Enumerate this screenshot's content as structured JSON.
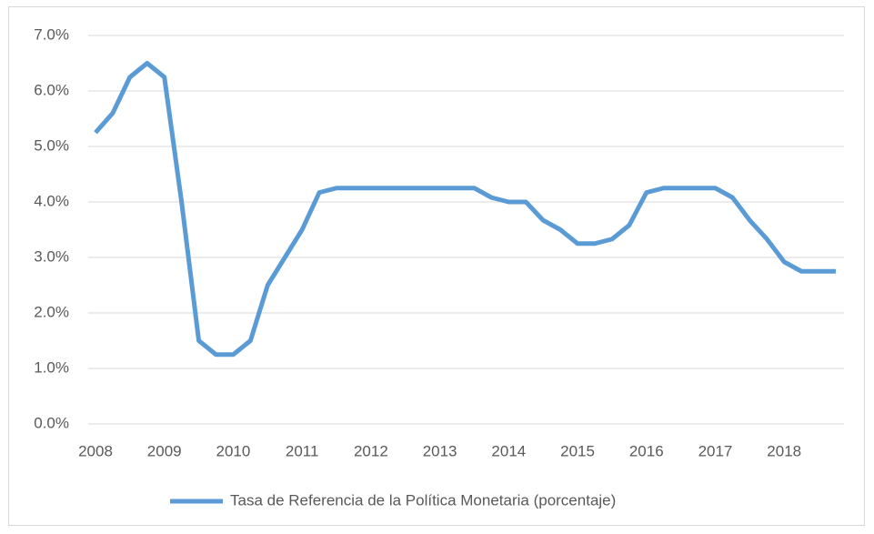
{
  "chart_data": {
    "type": "line",
    "categories": [
      "2008",
      null,
      null,
      null,
      "2009",
      null,
      null,
      null,
      "2010",
      null,
      null,
      null,
      "2011",
      null,
      null,
      null,
      "2012",
      null,
      null,
      null,
      "2013",
      null,
      null,
      null,
      "2014",
      null,
      null,
      null,
      "2015",
      null,
      null,
      null,
      "2016",
      null,
      null,
      null,
      "2017",
      null,
      null,
      null,
      "2018",
      null,
      null,
      null
    ],
    "series": [
      {
        "name": "Tasa de Referencia de la Política Monetaria (porcentaje)",
        "color": "#5b9bd5",
        "values": [
          5.25,
          5.6,
          6.25,
          6.5,
          6.25,
          4.0,
          1.5,
          1.25,
          1.25,
          1.5,
          2.5,
          3.0,
          3.5,
          4.17,
          4.25,
          4.25,
          4.25,
          4.25,
          4.25,
          4.25,
          4.25,
          4.25,
          4.25,
          4.08,
          4.0,
          4.0,
          3.67,
          3.5,
          3.25,
          3.25,
          3.33,
          3.58,
          4.17,
          4.25,
          4.25,
          4.25,
          4.25,
          4.08,
          3.67,
          3.33,
          2.92,
          2.75,
          2.75,
          2.75
        ]
      }
    ],
    "ylim": [
      0,
      7
    ],
    "yticks": [
      {
        "value": 0,
        "label": "0.0%"
      },
      {
        "value": 1,
        "label": "1.0%"
      },
      {
        "value": 2,
        "label": "2.0%"
      },
      {
        "value": 3,
        "label": "3.0%"
      },
      {
        "value": 4,
        "label": "4.0%"
      },
      {
        "value": 5,
        "label": "5.0%"
      },
      {
        "value": 6,
        "label": "6.0%"
      },
      {
        "value": 7,
        "label": "7.0%"
      }
    ],
    "grid": true,
    "legend": "bottom"
  }
}
